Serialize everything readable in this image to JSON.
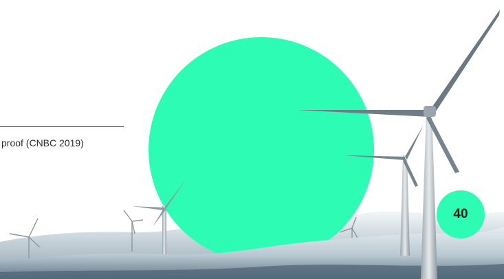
{
  "caption": {
    "text": "proof (CNBC 2019)"
  },
  "page_number": {
    "value": "40"
  },
  "colors": {
    "accent_circle": "#2dfcb4",
    "background": "#ffffff",
    "text": "#2b2b2b",
    "rule": "#333333"
  },
  "image": {
    "subject": "wind-turbines-on-snowy-hills"
  }
}
